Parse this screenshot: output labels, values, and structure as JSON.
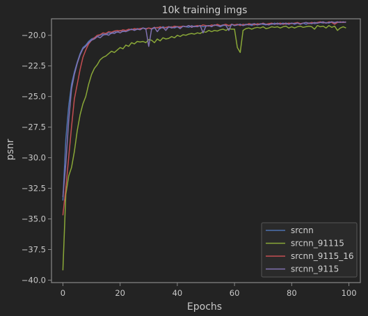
{
  "chart_data": {
    "type": "line",
    "title": "10k training imgs",
    "xlabel": "Epochs",
    "ylabel": "psnr",
    "xlim": [
      -4,
      104
    ],
    "ylim": [
      -40.2,
      -18.65
    ],
    "xticks": [
      0,
      20,
      40,
      60,
      80,
      100
    ],
    "xtick_labels": [
      "0",
      "20",
      "40",
      "60",
      "80",
      "100"
    ],
    "yticks": [
      -40.0,
      -37.5,
      -35.0,
      -32.5,
      -30.0,
      -27.5,
      -25.0,
      -22.5,
      -20.0
    ],
    "ytick_labels": [
      "−40.0",
      "−37.5",
      "−35.0",
      "−32.5",
      "−30.0",
      "−27.5",
      "−25.0",
      "−22.5",
      "−20.0"
    ],
    "grid": false,
    "legend_position": "lower-right",
    "background_color": "#232323",
    "axes_color": "#888888",
    "series": [
      {
        "name": "srcnn",
        "color": "#4c72b0",
        "x": [
          0,
          1,
          2,
          3,
          4,
          5,
          6,
          7,
          8,
          9,
          10,
          11,
          12,
          13,
          14,
          15,
          16,
          17,
          18,
          19,
          20,
          21,
          22,
          23,
          24,
          25,
          26,
          27,
          28,
          29,
          30,
          31,
          32,
          33,
          34,
          35,
          36,
          37,
          38,
          39,
          40,
          41,
          42,
          43,
          44,
          45,
          46,
          47,
          48,
          49,
          50,
          51,
          52,
          53,
          54,
          55,
          56,
          57,
          58,
          59,
          60,
          61,
          62,
          63,
          64,
          65,
          66,
          67,
          68,
          69,
          70,
          71,
          72,
          73,
          74,
          75,
          76,
          77,
          78,
          79,
          80,
          81,
          82,
          83,
          84,
          85,
          86,
          87,
          88,
          89,
          90,
          91,
          92,
          93,
          94,
          95,
          96,
          97,
          98,
          99
        ],
        "y": [
          -33.5,
          -28.5,
          -25.8,
          -24.0,
          -23.0,
          -22.2,
          -21.5,
          -21.0,
          -20.8,
          -20.5,
          -20.3,
          -20.2,
          -20.1,
          -20.0,
          -19.9,
          -19.95,
          -19.8,
          -19.85,
          -19.7,
          -19.75,
          -19.6,
          -19.7,
          -19.6,
          -19.55,
          -19.5,
          -19.55,
          -19.45,
          -19.5,
          -19.4,
          -19.45,
          -19.4,
          -19.5,
          -19.4,
          -19.35,
          -19.45,
          -19.3,
          -19.4,
          -19.35,
          -19.3,
          -19.4,
          -19.3,
          -19.35,
          -19.25,
          -19.3,
          -19.35,
          -19.2,
          -19.3,
          -19.25,
          -19.2,
          -19.3,
          -19.25,
          -19.2,
          -19.25,
          -19.15,
          -19.2,
          -19.3,
          -19.2,
          -19.15,
          -19.25,
          -19.1,
          -19.2,
          -19.15,
          -19.1,
          -19.2,
          -19.15,
          -19.1,
          -19.2,
          -19.1,
          -19.15,
          -19.05,
          -19.1,
          -19.15,
          -19.05,
          -19.1,
          -19.0,
          -19.1,
          -19.05,
          -19.0,
          -19.1,
          -19.05,
          -19.0,
          -19.1,
          -19.0,
          -19.05,
          -19.0,
          -19.1,
          -19.0,
          -18.95,
          -19.05,
          -19.0,
          -18.95,
          -19.0,
          -18.95,
          -19.0,
          -18.9,
          -19.0,
          -18.95,
          -18.9,
          -18.95,
          -18.9
        ]
      },
      {
        "name": "srcnn_91115",
        "color": "#8aa838",
        "x": [
          0,
          1,
          2,
          3,
          4,
          5,
          6,
          7,
          8,
          9,
          10,
          11,
          12,
          13,
          14,
          15,
          16,
          17,
          18,
          19,
          20,
          21,
          22,
          23,
          24,
          25,
          26,
          27,
          28,
          29,
          30,
          31,
          32,
          33,
          34,
          35,
          36,
          37,
          38,
          39,
          40,
          41,
          42,
          43,
          44,
          45,
          46,
          47,
          48,
          49,
          50,
          51,
          52,
          53,
          54,
          55,
          56,
          57,
          58,
          59,
          60,
          61,
          62,
          63,
          64,
          65,
          66,
          67,
          68,
          69,
          70,
          71,
          72,
          73,
          74,
          75,
          76,
          77,
          78,
          79,
          80,
          81,
          82,
          83,
          84,
          85,
          86,
          87,
          88,
          89,
          90,
          91,
          92,
          93,
          94,
          95,
          96,
          97,
          98,
          99
        ],
        "y": [
          -39.2,
          -33.0,
          -31.5,
          -30.8,
          -29.5,
          -27.8,
          -26.5,
          -25.6,
          -25.0,
          -24.0,
          -23.2,
          -22.7,
          -22.4,
          -22.0,
          -21.8,
          -21.7,
          -21.5,
          -21.3,
          -21.4,
          -21.2,
          -21.0,
          -21.1,
          -20.8,
          -20.9,
          -20.6,
          -20.7,
          -20.5,
          -20.55,
          -20.5,
          -20.6,
          -20.35,
          -20.4,
          -20.6,
          -20.3,
          -20.45,
          -20.2,
          -20.3,
          -20.25,
          -20.1,
          -20.2,
          -20.0,
          -20.1,
          -19.95,
          -20.0,
          -19.9,
          -19.85,
          -19.9,
          -19.8,
          -19.85,
          -19.7,
          -19.75,
          -19.6,
          -19.7,
          -19.6,
          -19.65,
          -19.55,
          -19.5,
          -19.6,
          -19.45,
          -19.5,
          -19.5,
          -21.0,
          -21.4,
          -19.6,
          -19.45,
          -19.4,
          -19.5,
          -19.4,
          -19.35,
          -19.4,
          -19.3,
          -19.45,
          -19.4,
          -19.3,
          -19.35,
          -19.3,
          -19.4,
          -19.3,
          -19.25,
          -19.4,
          -19.3,
          -19.4,
          -19.3,
          -19.25,
          -19.35,
          -19.3,
          -19.25,
          -19.3,
          -19.5,
          -19.2,
          -19.3,
          -19.25,
          -19.4,
          -19.2,
          -19.35,
          -19.25,
          -19.6,
          -19.4,
          -19.3,
          -19.4
        ]
      },
      {
        "name": "srcnn_9115_16",
        "color": "#c44e52",
        "x": [
          0,
          1,
          2,
          3,
          4,
          5,
          6,
          7,
          8,
          9,
          10,
          11,
          12,
          13,
          14,
          15,
          16,
          17,
          18,
          19,
          20,
          21,
          22,
          23,
          24,
          25,
          26,
          27,
          28,
          29,
          30,
          31,
          32,
          33,
          34,
          35,
          36,
          37,
          38,
          39,
          40,
          41,
          42,
          43,
          44,
          45,
          46,
          47,
          48,
          49,
          50,
          51,
          52,
          53,
          54,
          55,
          56,
          57,
          58,
          59,
          60,
          61,
          62,
          63,
          64,
          65,
          66,
          67,
          68,
          69,
          70,
          71,
          72,
          73,
          74,
          75,
          76,
          77,
          78,
          79,
          80,
          81,
          82,
          83,
          84,
          85,
          86,
          87,
          88,
          89,
          90,
          91,
          92,
          93,
          94,
          95,
          96,
          97,
          98,
          99
        ],
        "y": [
          -34.7,
          -32.5,
          -30.0,
          -27.5,
          -25.2,
          -24.0,
          -22.8,
          -21.8,
          -21.2,
          -20.7,
          -20.4,
          -20.2,
          -20.0,
          -19.95,
          -19.8,
          -19.85,
          -19.7,
          -19.75,
          -19.65,
          -19.6,
          -19.65,
          -19.55,
          -19.6,
          -19.5,
          -19.55,
          -19.45,
          -19.5,
          -19.45,
          -19.4,
          -19.5,
          -19.4,
          -19.45,
          -19.35,
          -19.4,
          -19.3,
          -19.4,
          -19.35,
          -19.3,
          -19.35,
          -19.25,
          -19.3,
          -19.3,
          -19.25,
          -19.3,
          -19.2,
          -19.3,
          -19.25,
          -19.2,
          -19.25,
          -19.15,
          -19.2,
          -19.25,
          -19.15,
          -19.2,
          -19.1,
          -19.2,
          -19.15,
          -19.1,
          -19.2,
          -19.1,
          -19.15,
          -19.1,
          -19.2,
          -19.1,
          -19.15,
          -19.05,
          -19.1,
          -19.15,
          -19.05,
          -19.1,
          -19.0,
          -19.1,
          -19.05,
          -19.0,
          -19.1,
          -19.05,
          -19.0,
          -19.1,
          -19.05,
          -19.0,
          -19.05,
          -19.0,
          -18.95,
          -19.05,
          -19.0,
          -18.95,
          -19.05,
          -18.95,
          -19.0,
          -18.95,
          -18.9,
          -18.95,
          -19.0,
          -18.9,
          -18.95,
          -19.1,
          -18.95,
          -18.9,
          -18.95,
          -18.9
        ]
      },
      {
        "name": "srcnn_9115",
        "color": "#8172b2",
        "x": [
          0,
          1,
          2,
          3,
          4,
          5,
          6,
          7,
          8,
          9,
          10,
          11,
          12,
          13,
          14,
          15,
          16,
          17,
          18,
          19,
          20,
          21,
          22,
          23,
          24,
          25,
          26,
          27,
          28,
          29,
          30,
          31,
          32,
          33,
          34,
          35,
          36,
          37,
          38,
          39,
          40,
          41,
          42,
          43,
          44,
          45,
          46,
          47,
          48,
          49,
          50,
          51,
          52,
          53,
          54,
          55,
          56,
          57,
          58,
          59,
          60,
          61,
          62,
          63,
          64,
          65,
          66,
          67,
          68,
          69,
          70,
          71,
          72,
          73,
          74,
          75,
          76,
          77,
          78,
          79,
          80,
          81,
          82,
          83,
          84,
          85,
          86,
          87,
          88,
          89,
          90,
          91,
          92,
          93,
          94,
          95,
          96,
          97,
          98,
          99
        ],
        "y": [
          -33.2,
          -30.5,
          -27.0,
          -24.4,
          -23.2,
          -22.3,
          -21.6,
          -21.1,
          -20.9,
          -20.6,
          -20.4,
          -20.3,
          -20.1,
          -20.2,
          -20.0,
          -19.9,
          -20.0,
          -19.8,
          -19.85,
          -19.7,
          -19.8,
          -19.65,
          -19.7,
          -19.6,
          -19.5,
          -19.6,
          -19.5,
          -19.55,
          -19.4,
          -19.5,
          -20.9,
          -19.5,
          -19.35,
          -19.7,
          -19.4,
          -19.35,
          -19.6,
          -19.3,
          -19.4,
          -19.35,
          -19.3,
          -19.45,
          -19.25,
          -19.3,
          -19.2,
          -19.35,
          -19.25,
          -19.3,
          -19.2,
          -19.8,
          -19.25,
          -19.2,
          -19.3,
          -19.15,
          -19.2,
          -19.25,
          -19.15,
          -19.2,
          -19.6,
          -19.1,
          -19.2,
          -19.15,
          -19.1,
          -19.2,
          -19.1,
          -19.15,
          -19.1,
          -19.05,
          -19.15,
          -19.1,
          -19.05,
          -19.1,
          -19.15,
          -19.05,
          -19.1,
          -19.0,
          -19.1,
          -19.05,
          -19.0,
          -19.1,
          -19.0,
          -19.05,
          -19.0,
          -19.1,
          -19.0,
          -18.95,
          -19.0,
          -19.05,
          -18.95,
          -19.0,
          -18.95,
          -18.9,
          -19.0,
          -18.95,
          -18.9,
          -18.95,
          -18.9,
          -18.95,
          -18.9,
          -18.95
        ]
      }
    ]
  }
}
